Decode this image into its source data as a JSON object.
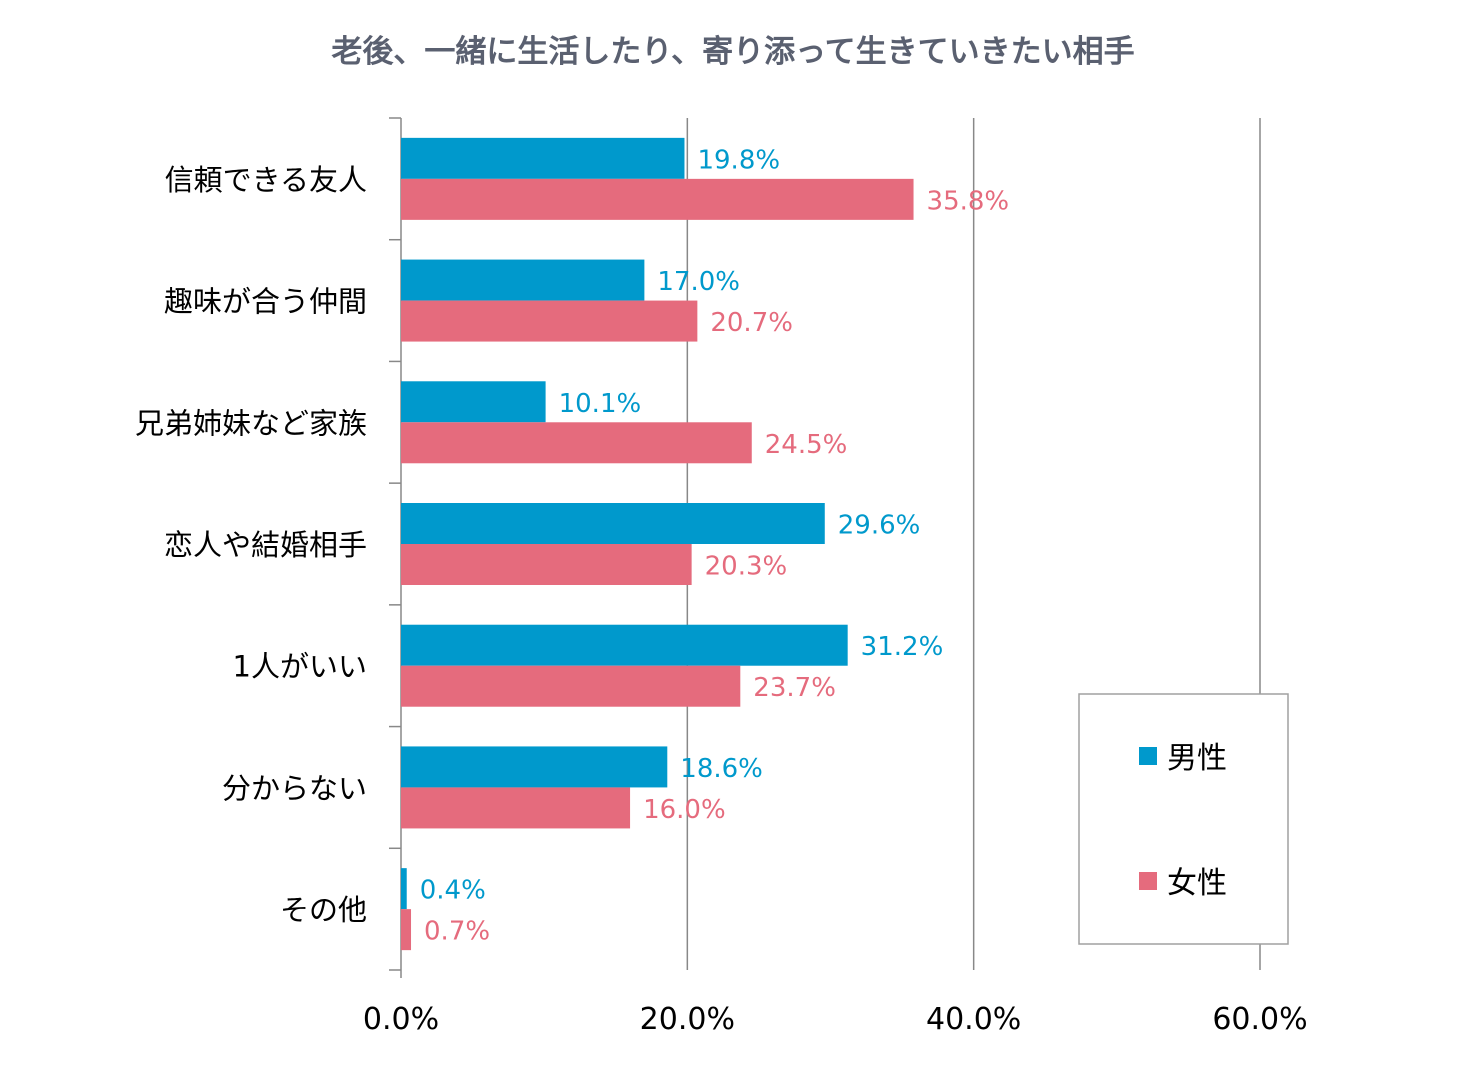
{
  "chart_data": {
    "type": "bar",
    "orientation": "horizontal",
    "title": "老後、一緒に生活したり、寄り添って生きていきたい相手",
    "categories": [
      "信頼できる友人",
      "趣味が合う仲間",
      "兄弟姉妹など家族",
      "恋人や結婚相手",
      "1人がいい",
      "分からない",
      "その他"
    ],
    "series": [
      {
        "name": "男性",
        "color": "#0099cc",
        "values": [
          19.8,
          17.0,
          10.1,
          29.6,
          31.2,
          18.6,
          0.4
        ],
        "labels": [
          "19.8%",
          "17.0%",
          "10.1%",
          "29.6%",
          "31.2%",
          "18.6%",
          "0.4%"
        ]
      },
      {
        "name": "女性",
        "color": "#e56b7d",
        "values": [
          35.8,
          20.7,
          24.5,
          20.3,
          23.7,
          16.0,
          0.7
        ],
        "labels": [
          "35.8%",
          "20.7%",
          "24.5%",
          "20.3%",
          "23.7%",
          "16.0%",
          "0.7%"
        ]
      }
    ],
    "xlim": [
      0,
      60
    ],
    "x_ticks": [
      0,
      20,
      40,
      60
    ],
    "x_tick_labels": [
      "0.0%",
      "20.0%",
      "40.0%",
      "60.0%"
    ],
    "grid": true,
    "legend_position": "bottom-right",
    "title_color": "#5a6070",
    "grid_color": "#888888"
  }
}
